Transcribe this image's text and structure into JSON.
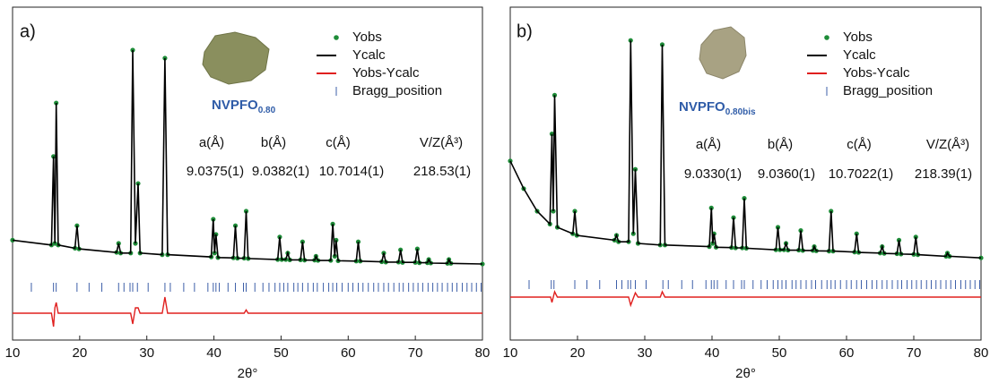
{
  "chart_data": [
    {
      "type": "line",
      "label": "a)",
      "sample": "NVPFO",
      "sample_sub": "0.80",
      "xlabel": "2θ°",
      "xlim": [
        10,
        80
      ],
      "xticks": [
        10,
        20,
        30,
        40,
        50,
        60,
        70,
        80
      ],
      "ylim": [
        0,
        100
      ],
      "y2lim": [
        -5,
        55
      ],
      "x": [
        10,
        15.8,
        16.1,
        16.3,
        16.5,
        16.8,
        19.3,
        19.6,
        19.9,
        25.5,
        25.8,
        26.1,
        27.6,
        27.9,
        28.3,
        28.7,
        29,
        32.3,
        32.7,
        33.1,
        39.6,
        39.9,
        40.1,
        40.3,
        40.6,
        42.9,
        43.2,
        43.5,
        44.5,
        44.8,
        45.1,
        49.5,
        49.8,
        50.1,
        50.7,
        51,
        51.3,
        52.9,
        53.2,
        53.5,
        55,
        55.2,
        55.5,
        57.4,
        57.7,
        58,
        58.2,
        58.5,
        61.2,
        61.5,
        61.8,
        65,
        65.3,
        65.6,
        67.5,
        67.8,
        68.1,
        70,
        70.3,
        70.6,
        71.8,
        72,
        72.3,
        74.8,
        75,
        75.3,
        80
      ],
      "series": [
        {
          "name": "Yobs",
          "color": "#1e8c38",
          "style": "dots",
          "values": [
            31,
            29.5,
            57,
            30,
            73.6,
            29.5,
            28.5,
            35.5,
            28.3,
            27.2,
            30,
            27,
            27,
            90,
            30,
            48.6,
            27,
            26.5,
            87.5,
            26.5,
            25.8,
            37.5,
            27,
            32.8,
            25.6,
            25.5,
            35.5,
            25.4,
            25.4,
            40,
            25.3,
            25,
            32,
            25,
            25,
            27,
            24.9,
            24.9,
            30.5,
            24.8,
            24.8,
            26,
            24.7,
            24.7,
            36,
            26,
            31,
            24.6,
            24.5,
            30.5,
            24.5,
            24.3,
            27,
            24.2,
            24.2,
            28,
            24.1,
            24.1,
            28.3,
            24,
            24,
            25,
            23.9,
            23.8,
            25,
            23.8,
            23.6
          ]
        },
        {
          "name": "Ycalc",
          "color": "#000000",
          "style": "line",
          "values": [
            31,
            29.5,
            57,
            30,
            73.6,
            29.5,
            28.5,
            35.5,
            28.3,
            27.2,
            30,
            27,
            27,
            90,
            30,
            48.6,
            27,
            26.5,
            87.5,
            26.5,
            25.8,
            37.5,
            27,
            32.8,
            25.6,
            25.5,
            35.5,
            25.4,
            25.4,
            40,
            25.3,
            25,
            32,
            25,
            25,
            27,
            24.9,
            24.9,
            30.5,
            24.8,
            24.8,
            26,
            24.7,
            24.7,
            36,
            26,
            31,
            24.6,
            24.5,
            30.5,
            24.5,
            24.3,
            27,
            24.2,
            24.2,
            28,
            24.1,
            24.1,
            28.3,
            24,
            24,
            25,
            23.9,
            23.8,
            25,
            23.8,
            23.6
          ]
        },
        {
          "name": "Yobs-Ycalc",
          "color": "#e0201f",
          "style": "line",
          "axis": "y2",
          "x": [
            10,
            15.8,
            16.1,
            16.3,
            16.5,
            16.8,
            27.6,
            27.9,
            28.3,
            28.7,
            29,
            32.3,
            32.7,
            33.1,
            44.5,
            44.8,
            45.1,
            80
          ],
          "values": [
            0,
            0,
            -2.5,
            1,
            2,
            0,
            0,
            -2,
            1,
            1,
            0,
            0,
            3,
            0,
            0,
            0.6,
            0,
            0
          ]
        }
      ],
      "bragg": {
        "name": "Bragg_position",
        "color": "#3d5fa8",
        "x": [
          12.8,
          16.1,
          16.5,
          19.6,
          21.4,
          23.3,
          25.8,
          26.6,
          27.5,
          27.9,
          28.6,
          30.2,
          32.7,
          33.5,
          35.5,
          37.1,
          39.1,
          39.9,
          40.3,
          40.8,
          42.1,
          43.2,
          44.4,
          44.8,
          46.1,
          47.3,
          48.2,
          49.1,
          49.8,
          50.4,
          51,
          51.9,
          52.5,
          53.2,
          54,
          54.8,
          55.4,
          56.3,
          57.1,
          57.7,
          58.3,
          59.1,
          60,
          60.7,
          61.5,
          62.2,
          63,
          63.8,
          64.5,
          65.3,
          66,
          66.8,
          67.6,
          68.2,
          69,
          69.7,
          70.4,
          71.1,
          71.9,
          72.6,
          73.3,
          74,
          74.8,
          75.5,
          76.2,
          77,
          77.7,
          78.4,
          79.1,
          79.8
        ]
      },
      "lattice": {
        "headers": [
          "a(Å)",
          "b(Å)",
          "c(Å)",
          "V/Z(Å³)"
        ],
        "values": [
          "9.0375(1)",
          "9.0382(1)",
          "10.7014(1)",
          "218.53(1)"
        ]
      }
    },
    {
      "type": "line",
      "label": "b)",
      "sample": "NVPFO",
      "sample_sub": "0.80bis",
      "xlabel": "2θ°",
      "xlim": [
        10,
        80
      ],
      "xticks": [
        10,
        20,
        30,
        40,
        50,
        60,
        70,
        80
      ],
      "ylim": [
        0,
        100
      ],
      "y2lim": [
        -8,
        52
      ],
      "x": [
        10,
        12,
        14,
        15.9,
        16.2,
        16.4,
        16.6,
        17,
        19.3,
        19.6,
        19.9,
        25.5,
        25.8,
        26.1,
        27.6,
        27.9,
        28.3,
        28.6,
        29,
        32.3,
        32.6,
        33,
        39.6,
        39.9,
        40.1,
        40.3,
        40.6,
        42.9,
        43.2,
        43.5,
        44.5,
        44.8,
        45.1,
        49.5,
        49.8,
        50.1,
        50.7,
        51,
        51.3,
        52.9,
        53.2,
        53.5,
        55,
        55.2,
        55.5,
        57.4,
        57.7,
        58,
        61.2,
        61.5,
        61.8,
        65,
        65.3,
        65.6,
        67.5,
        67.8,
        68.1,
        70,
        70.3,
        70.6,
        74.8,
        75,
        75.3,
        80
      ],
      "series": [
        {
          "name": "Yobs",
          "color": "#1e8c38",
          "style": "dots",
          "values": [
            55.6,
            47,
            40,
            36,
            64,
            40,
            76,
            35,
            33,
            40,
            32.5,
            31,
            32.5,
            30.5,
            30.5,
            93,
            33,
            53,
            30,
            29.5,
            91.7,
            29.5,
            29,
            41,
            30,
            33,
            28.8,
            28.7,
            38,
            28.6,
            28.6,
            44,
            28.5,
            28,
            35,
            28,
            28,
            30,
            27.9,
            27.9,
            34,
            27.8,
            27.8,
            29,
            27.7,
            27.6,
            40,
            27.6,
            27.3,
            33,
            27.2,
            27,
            29,
            26.9,
            26.8,
            31,
            26.7,
            26.6,
            32,
            26.5,
            26,
            27,
            26,
            25.5
          ]
        },
        {
          "name": "Ycalc",
          "color": "#000000",
          "style": "line",
          "values": [
            55.6,
            47,
            40,
            36,
            64,
            40,
            76,
            35,
            33,
            40,
            32.5,
            31,
            32.5,
            30.5,
            30.5,
            93,
            33,
            53,
            30,
            29.5,
            91.7,
            29.5,
            29,
            41,
            30,
            33,
            28.8,
            28.7,
            38,
            28.6,
            28.6,
            44,
            28.5,
            28,
            35,
            28,
            28,
            30,
            27.9,
            27.9,
            34,
            27.8,
            27.8,
            29,
            27.7,
            27.6,
            40,
            27.6,
            27.3,
            33,
            27.2,
            27,
            29,
            26.9,
            26.8,
            31,
            26.7,
            26.6,
            32,
            26.5,
            26,
            27,
            26,
            25.5
          ]
        },
        {
          "name": "Yobs-Ycalc",
          "color": "#e0201f",
          "style": "line",
          "axis": "y2",
          "x": [
            10,
            16,
            16.2,
            16.6,
            17,
            27.6,
            27.9,
            28.6,
            29,
            32.3,
            32.6,
            33,
            80
          ],
          "values": [
            0,
            0,
            -1,
            1,
            0,
            0,
            -1.5,
            0.8,
            0,
            0,
            1,
            0,
            0
          ]
        }
      ],
      "bragg": {
        "name": "Bragg_position",
        "color": "#3d5fa8",
        "x": [
          12.8,
          16.1,
          16.5,
          19.6,
          21.4,
          23.3,
          25.8,
          26.6,
          27.5,
          27.9,
          28.6,
          30.2,
          32.7,
          33.5,
          35.5,
          37.1,
          39.1,
          39.9,
          40.3,
          40.8,
          42.1,
          43.2,
          44.4,
          44.8,
          46.1,
          47.3,
          48.2,
          49.1,
          49.8,
          50.4,
          51,
          51.9,
          52.5,
          53.2,
          54,
          54.8,
          55.4,
          56.3,
          57.1,
          57.7,
          58.3,
          59.1,
          60,
          60.7,
          61.5,
          62.2,
          63,
          63.8,
          64.5,
          65.3,
          66,
          66.8,
          67.6,
          68.2,
          69,
          69.7,
          70.4,
          71.1,
          71.9,
          72.6,
          73.3,
          74,
          74.8,
          75.5,
          76.2,
          77,
          77.7,
          78.4,
          79.1,
          79.8
        ]
      },
      "lattice": {
        "headers": [
          "a(Å)",
          "b(Å)",
          "c(Å)",
          "V/Z(Å³)"
        ],
        "values": [
          "9.0330(1)",
          "9.0360(1)",
          "10.7022(1)",
          "218.39(1)"
        ]
      }
    }
  ]
}
